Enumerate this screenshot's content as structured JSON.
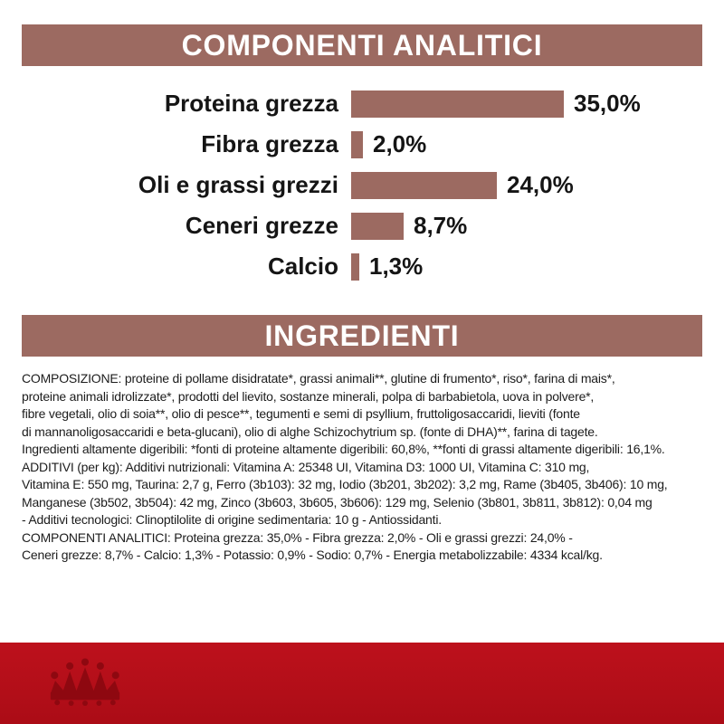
{
  "analytics_section": {
    "title": "COMPONENTI ANALITICI"
  },
  "chart_data": {
    "type": "bar",
    "orientation": "horizontal",
    "title": "COMPONENTI ANALITICI",
    "categories": [
      "Proteina grezza",
      "Fibra grezza",
      "Oli e grassi grezzi",
      "Ceneri grezze",
      "Calcio"
    ],
    "values": [
      35.0,
      2.0,
      24.0,
      8.7,
      1.3
    ],
    "value_labels": [
      "35,0%",
      "2,0%",
      "24,0%",
      "8,7%",
      "1,3%"
    ],
    "xlim": [
      0,
      35
    ],
    "grid": false,
    "legend": false,
    "bar_color": "#9c6a61"
  },
  "ingredients_section": {
    "title": "INGREDIENTI",
    "lines": [
      "COMPOSIZIONE: proteine di pollame disidratate*, grassi animali**, glutine di frumento*, riso*, farina di mais*,",
      "proteine animali idrolizzate*, prodotti del lievito, sostanze minerali, polpa di barbabietola, uova in polvere*,",
      "fibre vegetali, olio di soia**, olio di pesce**, tegumenti e semi di psyllium, fruttoligosaccaridi, lieviti (fonte",
      "di mannanoligosaccaridi e beta-glucani), olio di alghe Schizochytrium sp. (fonte di DHA)**, farina di tagete.",
      "Ingredienti altamente digeribili: *fonti di proteine altamente digeribili: 60,8%, **fonti di grassi altamente digeribili: 16,1%.",
      "ADDITIVI (per kg): Additivi nutrizionali: Vitamina A: 25348 UI, Vitamina D3: 1000 UI, Vitamina C: 310 mg,",
      "Vitamina E: 550 mg, Taurina: 2,7 g, Ferro (3b103): 32 mg, Iodio (3b201, 3b202): 3,2 mg, Rame (3b405, 3b406): 10 mg,",
      "Manganese (3b502, 3b504): 42 mg, Zinco (3b603, 3b605, 3b606): 129 mg, Selenio (3b801, 3b811, 3b812): 0,04 mg",
      "- Additivi tecnologici: Clinoptilolite di origine sedimentaria: 10 g - Antiossidanti.",
      "COMPONENTI ANALITICI: Proteina grezza: 35,0% - Fibra grezza: 2,0% - Oli e grassi grezzi: 24,0% -",
      "Ceneri grezze: 8,7% - Calcio: 1,3% - Potassio: 0,9% - Sodio: 0,7% - Energia metabolizzabile: 4334 kcal/kg."
    ]
  },
  "footer": {
    "logo": "royal-canin-crown-icon"
  },
  "colors": {
    "banner_bg": "#9c6a61",
    "bar_color": "#9c6a61",
    "footer_red": "#b30e18",
    "crown_red": "#8e0810",
    "text": "#1c1c1c"
  }
}
